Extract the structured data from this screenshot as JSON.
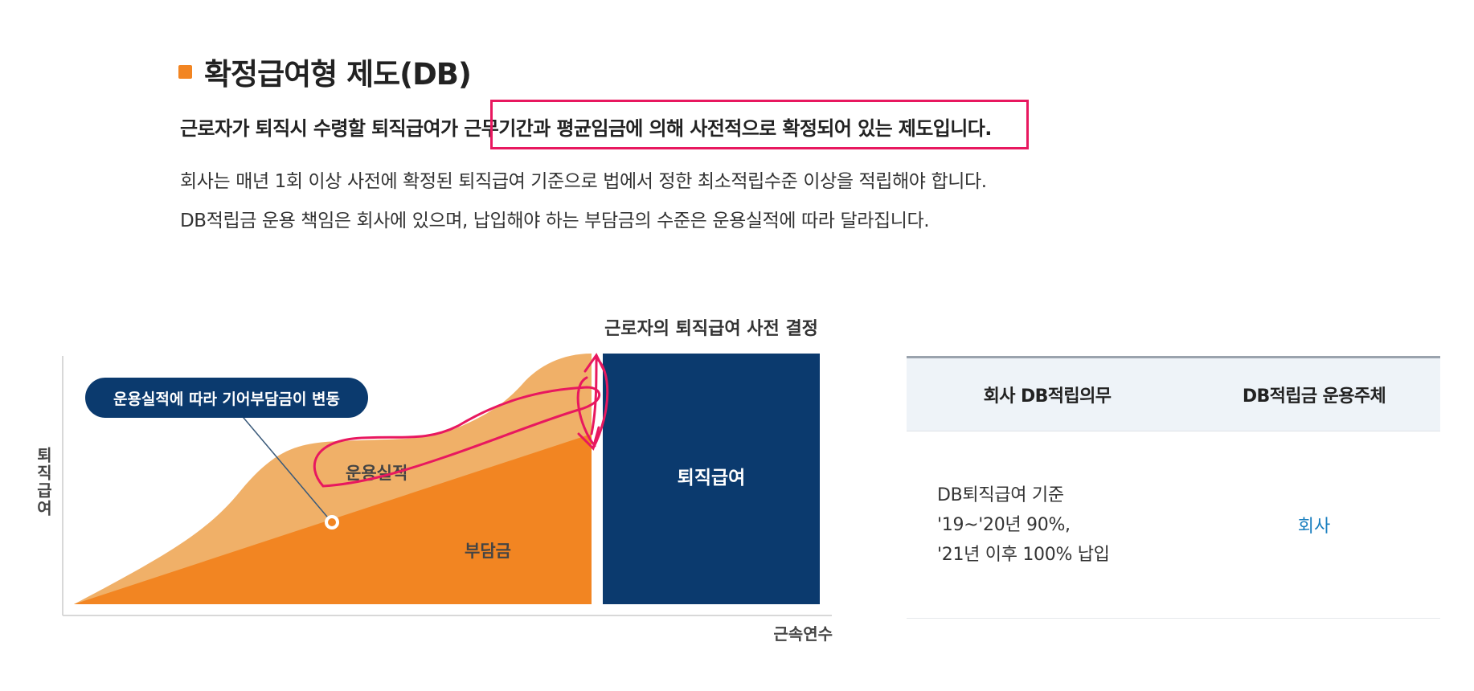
{
  "section": {
    "title": "확정급여형 제도(DB)",
    "summary_pre": "근로자가 퇴직시 수령할 퇴직급여가 ",
    "summary_highlight": "근무기간과 평균임금에 의해 사전적으로 확정되어 있는 제도",
    "summary_post": "입니다.",
    "desc_line1": "회사는 매년 1회 이상 사전에 확정된 퇴직급여 기준으로 법에서 정한 최소적립수준 이상을 적립해야 합니다.",
    "desc_line2": "DB적립금 운용 책임은 회사에 있으며, 납입해야 하는 부담금의 수준은 운용실적에 따라 달라집니다."
  },
  "diagram": {
    "top_label": "근로자의 퇴직급여 사전 결정",
    "callout": "운용실적에 따라 기어부담금이 변동",
    "area_upper_label": "운용실적",
    "area_lower_label": "부담금",
    "result_label": "퇴직급여",
    "y_axis_label": "퇴직급여",
    "x_axis_label": "근속연수",
    "colors": {
      "upper_area": "#f0b068",
      "lower_area": "#f28522",
      "result_box": "#0b3a6e",
      "callout_bg": "#0b3a6e",
      "annotation_red": "#e8185f"
    }
  },
  "table": {
    "col1_header": "회사 DB적립의무",
    "col2_header": "DB적립금 운용주체",
    "row1": {
      "col1_line1": "DB퇴직급여 기준",
      "col1_line2": "'19~'20년 90%,",
      "col1_line3": "'21년 이후 100% 납입",
      "col2": "회사"
    }
  }
}
